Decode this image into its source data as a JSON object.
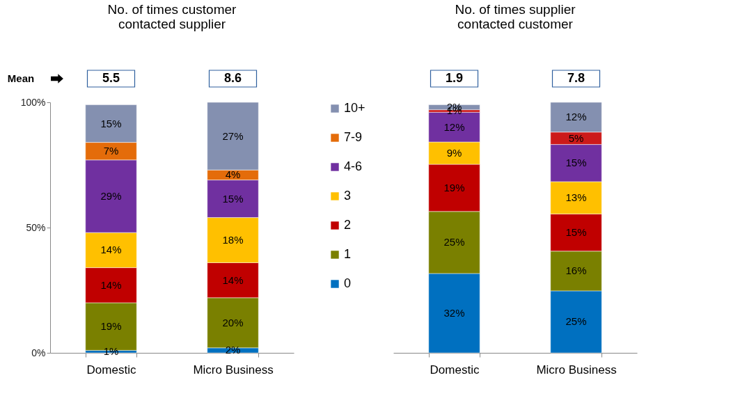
{
  "chart_data": [
    {
      "type": "bar",
      "stacked": true,
      "title": "No. of times customer contacted supplier",
      "categories": [
        "Domestic",
        "Micro Business"
      ],
      "ylim": [
        0,
        100
      ],
      "yticks": [
        {
          "value": 0,
          "label": "0%"
        },
        {
          "value": 50,
          "label": "50%"
        },
        {
          "value": 100,
          "label": "100%"
        }
      ],
      "legend": "right",
      "annotations": [
        "Mean",
        "5.5",
        "8.6"
      ],
      "series": [
        {
          "name": "0",
          "color": "#0070c0",
          "values": [
            1,
            2
          ],
          "value_labels": [
            "1%",
            "2%"
          ]
        },
        {
          "name": "1",
          "color": "#7a8000",
          "values": [
            19,
            20
          ],
          "value_labels": [
            "19%",
            "20%"
          ]
        },
        {
          "name": "2",
          "color": "#c00000",
          "values": [
            14,
            14
          ],
          "value_labels": [
            "14%",
            "14%"
          ]
        },
        {
          "name": "3",
          "color": "#ffc000",
          "values": [
            14,
            18
          ],
          "value_labels": [
            "14%",
            "18%"
          ]
        },
        {
          "name": "4-6",
          "color": "#7030a0",
          "values": [
            29,
            15
          ],
          "value_labels": [
            "29%",
            "15%"
          ]
        },
        {
          "name": "7-9",
          "color": "#e46c0a",
          "values": [
            7,
            4
          ],
          "value_labels": [
            "7%",
            "4%"
          ]
        },
        {
          "name": "10+",
          "color": "#8490b0",
          "values": [
            15,
            27
          ],
          "value_labels": [
            "15%",
            "27%"
          ]
        }
      ]
    },
    {
      "type": "bar",
      "stacked": true,
      "title": "No. of times supplier contacted customer",
      "categories": [
        "Domestic",
        "Micro Business"
      ],
      "ylim": [
        0,
        101
      ],
      "tick_labels": "x",
      "annotations": [
        "1.9",
        "7.8"
      ],
      "series": [
        {
          "color": "#0070c0",
          "values": [
            32,
            25
          ],
          "value_labels": [
            "32%",
            "25%"
          ]
        },
        {
          "color": "#7a8000",
          "values": [
            25,
            16
          ],
          "value_labels": [
            "25%",
            "16%"
          ]
        },
        {
          "color": "#c00000",
          "values": [
            19,
            15
          ],
          "value_labels": [
            "19%",
            "15%"
          ]
        },
        {
          "color": "#ffc000",
          "values": [
            9,
            13
          ],
          "value_labels": [
            "9%",
            "13%"
          ]
        },
        {
          "color": "#7030a0",
          "values": [
            12,
            15
          ],
          "value_labels": [
            "12%",
            "15%"
          ]
        },
        {
          "color": "#cc1a1a",
          "values": [
            1,
            5
          ],
          "value_labels": [
            "1%",
            "5%"
          ]
        },
        {
          "color": "#8490b0",
          "values": [
            2,
            12
          ],
          "value_labels": [
            "2%",
            "12%"
          ]
        }
      ]
    }
  ]
}
